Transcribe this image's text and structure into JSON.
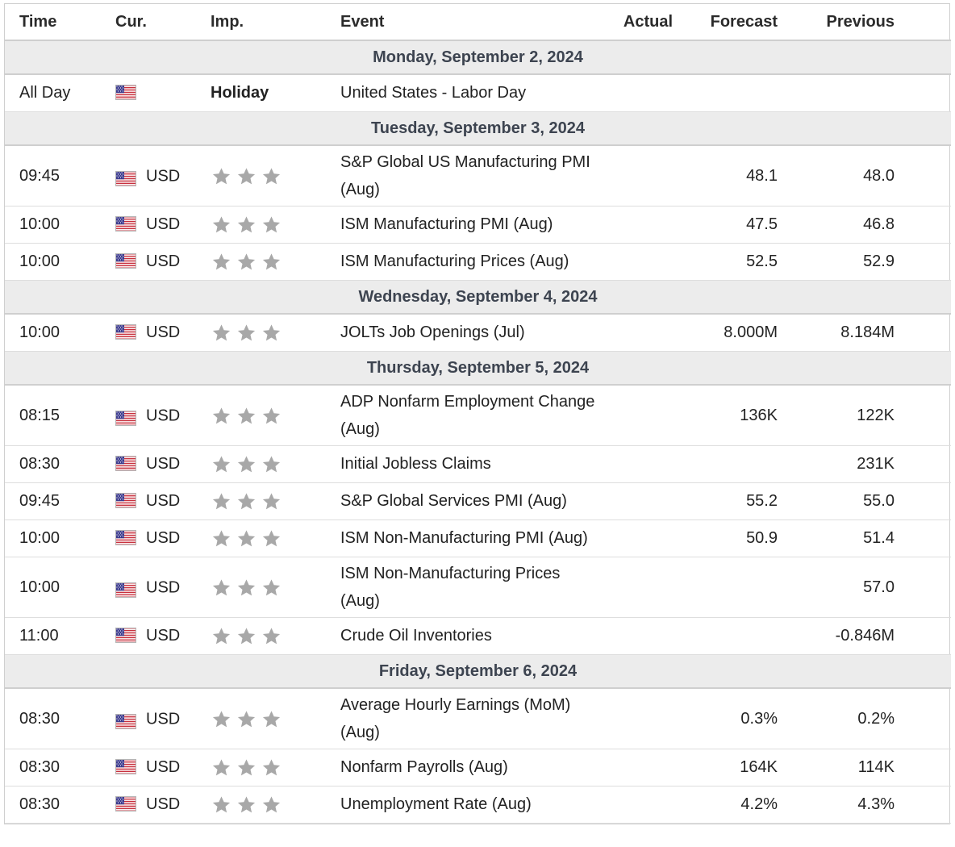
{
  "headers": {
    "time": "Time",
    "cur": "Cur.",
    "imp": "Imp.",
    "event": "Event",
    "actual": "Actual",
    "forecast": "Forecast",
    "previous": "Previous"
  },
  "colors": {
    "star_inactive": "#a8a8a8",
    "day_header_bg": "#ececec",
    "day_header_text": "#3d4450",
    "border": "#cfcfcf"
  },
  "icons": {
    "flag": "us-flag-icon",
    "star": "star-icon"
  },
  "days": [
    {
      "label": "Monday, September 2, 2024",
      "events": [
        {
          "time": "All Day",
          "currency": "",
          "importance": "Holiday",
          "event": "United States - Labor Day",
          "actual": "",
          "forecast": "",
          "previous": ""
        }
      ]
    },
    {
      "label": "Tuesday, September 3, 2024",
      "events": [
        {
          "time": "09:45",
          "currency": "USD",
          "importance": 3,
          "event": "S&P Global US Manufacturing PMI (Aug)",
          "actual": "",
          "forecast": "48.1",
          "previous": "48.0"
        },
        {
          "time": "10:00",
          "currency": "USD",
          "importance": 3,
          "event": "ISM Manufacturing PMI (Aug)",
          "actual": "",
          "forecast": "47.5",
          "previous": "46.8"
        },
        {
          "time": "10:00",
          "currency": "USD",
          "importance": 3,
          "event": "ISM Manufacturing Prices (Aug)",
          "actual": "",
          "forecast": "52.5",
          "previous": "52.9"
        }
      ]
    },
    {
      "label": "Wednesday, September 4, 2024",
      "events": [
        {
          "time": "10:00",
          "currency": "USD",
          "importance": 3,
          "event": "JOLTs Job Openings (Jul)",
          "actual": "",
          "forecast": "8.000M",
          "previous": "8.184M"
        }
      ]
    },
    {
      "label": "Thursday, September 5, 2024",
      "events": [
        {
          "time": "08:15",
          "currency": "USD",
          "importance": 3,
          "event": "ADP Nonfarm Employment Change (Aug)",
          "actual": "",
          "forecast": "136K",
          "previous": "122K"
        },
        {
          "time": "08:30",
          "currency": "USD",
          "importance": 3,
          "event": "Initial Jobless Claims",
          "actual": "",
          "forecast": "",
          "previous": "231K"
        },
        {
          "time": "09:45",
          "currency": "USD",
          "importance": 3,
          "event": "S&P Global Services PMI (Aug)",
          "actual": "",
          "forecast": "55.2",
          "previous": "55.0"
        },
        {
          "time": "10:00",
          "currency": "USD",
          "importance": 3,
          "event": "ISM Non-Manufacturing PMI (Aug)",
          "actual": "",
          "forecast": "50.9",
          "previous": "51.4"
        },
        {
          "time": "10:00",
          "currency": "USD",
          "importance": 3,
          "event": "ISM Non-Manufacturing Prices (Aug)",
          "actual": "",
          "forecast": "",
          "previous": "57.0"
        },
        {
          "time": "11:00",
          "currency": "USD",
          "importance": 3,
          "event": "Crude Oil Inventories",
          "actual": "",
          "forecast": "",
          "previous": "-0.846M"
        }
      ]
    },
    {
      "label": "Friday, September 6, 2024",
      "events": [
        {
          "time": "08:30",
          "currency": "USD",
          "importance": 3,
          "event": "Average Hourly Earnings (MoM) (Aug)",
          "actual": "",
          "forecast": "0.3%",
          "previous": "0.2%"
        },
        {
          "time": "08:30",
          "currency": "USD",
          "importance": 3,
          "event": "Nonfarm Payrolls (Aug)",
          "actual": "",
          "forecast": "164K",
          "previous": "114K"
        },
        {
          "time": "08:30",
          "currency": "USD",
          "importance": 3,
          "event": "Unemployment Rate (Aug)",
          "actual": "",
          "forecast": "4.2%",
          "previous": "4.3%"
        }
      ]
    }
  ]
}
